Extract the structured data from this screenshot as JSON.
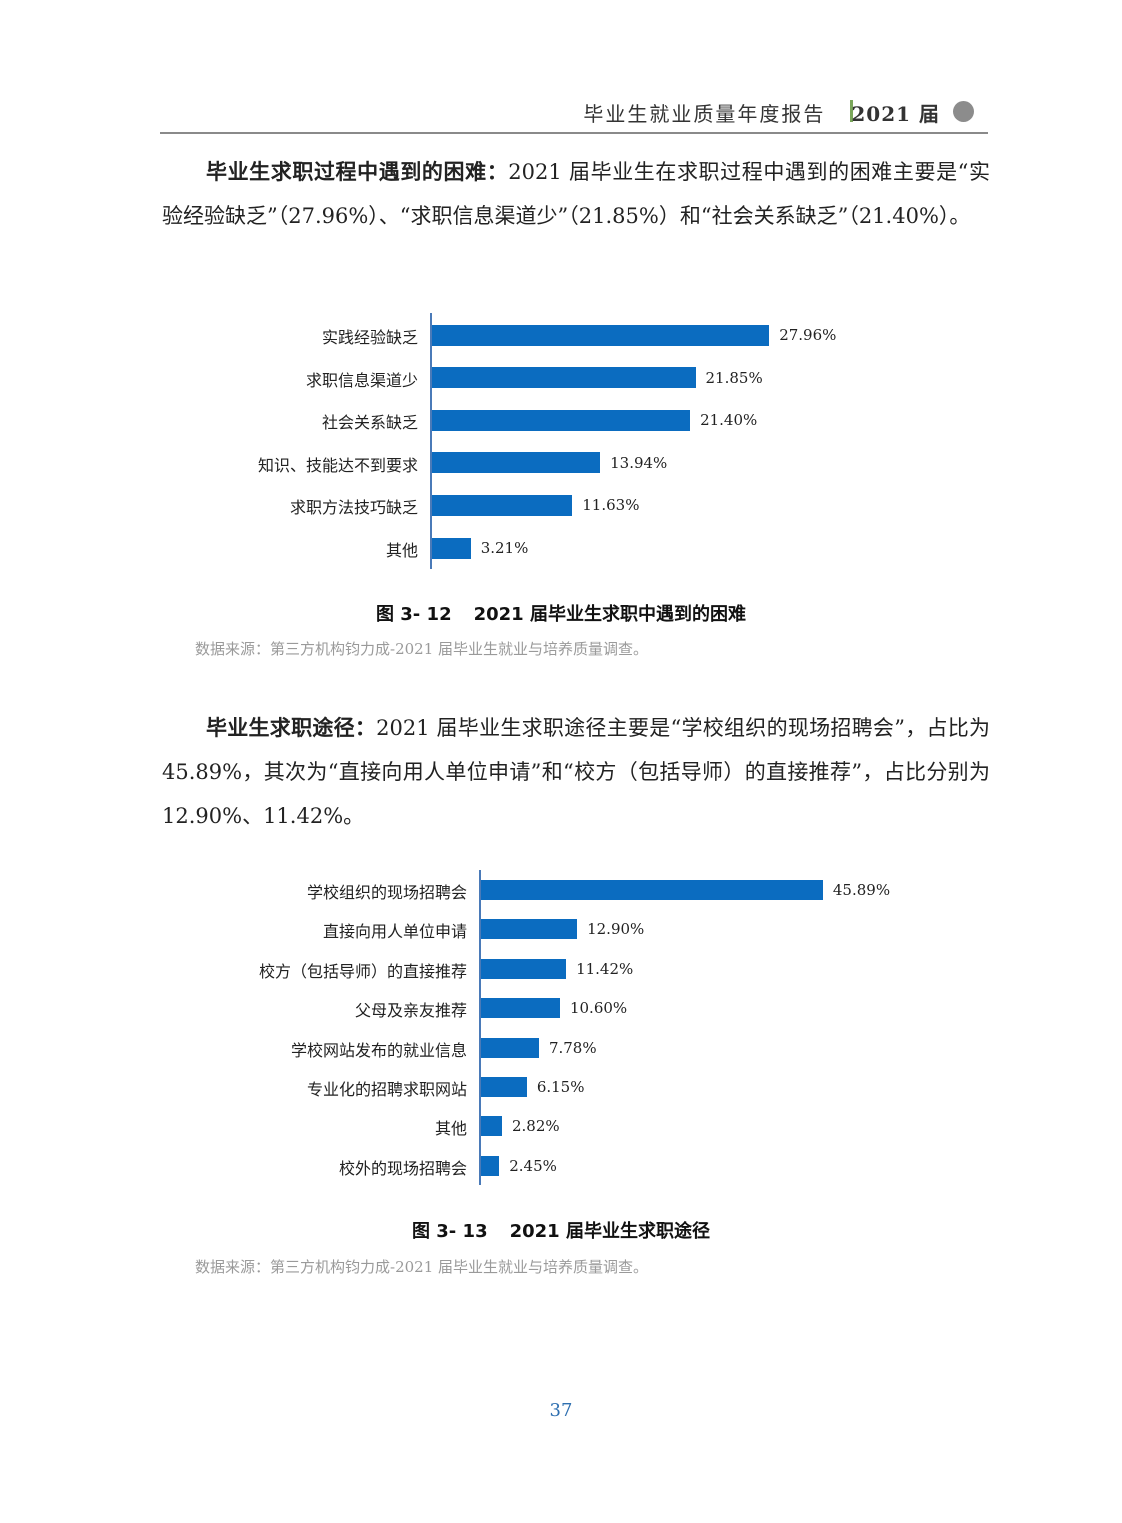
{
  "header": {
    "title": "毕业生就业质量年度报告",
    "year": "2021 届"
  },
  "section1": {
    "lead": "毕业生求职过程中遇到的困难：",
    "text": "2021 届毕业生在求职过程中遇到的困难主要是“实验经验缺乏”（27.96%）、“求职信息渠道少”（21.85%）和“社会关系缺乏”（21.40%）。"
  },
  "figure1": {
    "caption_num": "图 3- 12",
    "caption_title": "2021 届毕业生求职中遇到的困难",
    "source": "数据来源：第三方机构钧力成-2021 届毕业生就业与培养质量调查。"
  },
  "section2": {
    "lead": "毕业生求职途径：",
    "text": "2021 届毕业生求职途径主要是“学校组织的现场招聘会”，占比为 45.89%，其次为“直接向用人单位申请”和“校方（包括导师）的直接推荐”，占比分别为 12.90%、11.42%。"
  },
  "figure2": {
    "caption_num": "图 3- 13",
    "caption_title": "2021 届毕业生求职途径",
    "source": "数据来源：第三方机构钧力成-2021 届毕业生就业与培养质量调查。"
  },
  "page_number": "37",
  "colors": {
    "bar": "#0b6cc0",
    "axis": "#4a7ab8",
    "header_sep": "#7aa65a",
    "page_number": "#2e6fb0"
  },
  "chart_data": [
    {
      "type": "bar",
      "orientation": "horizontal",
      "title": "",
      "categories": [
        "实践经验缺乏",
        "求职信息渠道少",
        "社会关系缺乏",
        "知识、技能达不到要求",
        "求职方法技巧缺乏",
        "其他"
      ],
      "values": [
        27.96,
        21.85,
        21.4,
        13.94,
        11.63,
        3.21
      ],
      "labels": [
        "27.96%",
        "21.85%",
        "21.40%",
        "13.94%",
        "11.63%",
        "3.21%"
      ],
      "unit": "%",
      "grid": false
    },
    {
      "type": "bar",
      "orientation": "horizontal",
      "title": "",
      "categories": [
        "学校组织的现场招聘会",
        "直接向用人单位申请",
        "校方（包括导师）的直接推荐",
        "父母及亲友推荐",
        "学校网站发布的就业信息",
        "专业化的招聘求职网站",
        "其他",
        "校外的现场招聘会"
      ],
      "values": [
        45.89,
        12.9,
        11.42,
        10.6,
        7.78,
        6.15,
        2.82,
        2.45
      ],
      "labels": [
        "45.89%",
        "12.90%",
        "11.42%",
        "10.60%",
        "7.78%",
        "6.15%",
        "2.82%",
        "2.45%"
      ],
      "unit": "%",
      "grid": false
    }
  ]
}
